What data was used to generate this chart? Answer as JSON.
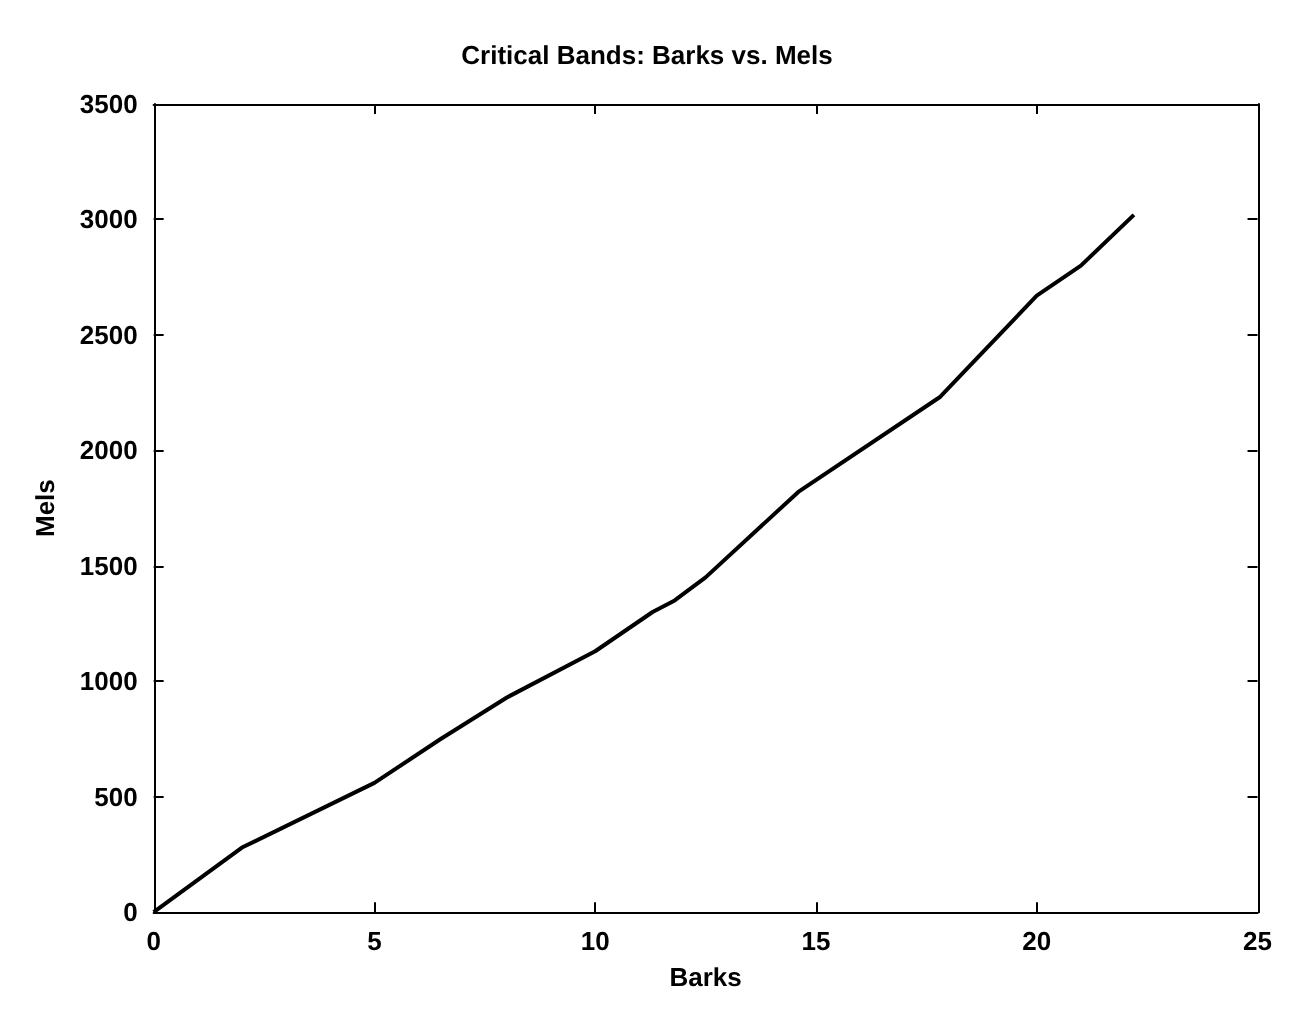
{
  "chart_data": {
    "type": "line",
    "title": "Critical Bands: Barks vs. Mels",
    "xlabel": "Barks",
    "ylabel": "Mels",
    "x": [
      0,
      2,
      5,
      6.5,
      8,
      10,
      11.3,
      11.8,
      12.5,
      14.6,
      17.8,
      18.6,
      20,
      21,
      22.2
    ],
    "series": [
      {
        "color": "#000000",
        "values": [
          0,
          280,
          560,
          750,
          930,
          1130,
          1300,
          1350,
          1450,
          1820,
          2230,
          2390,
          2670,
          2800,
          3020
        ]
      }
    ],
    "xlim": [
      0,
      25
    ],
    "xticks": [
      0,
      5,
      10,
      15,
      20,
      25
    ],
    "ylim": [
      0,
      3500
    ],
    "yticks": [
      0,
      500,
      1000,
      1500,
      2000,
      2500,
      3000,
      3500
    ],
    "grid": false,
    "marker": "none",
    "line_style": "solid"
  }
}
